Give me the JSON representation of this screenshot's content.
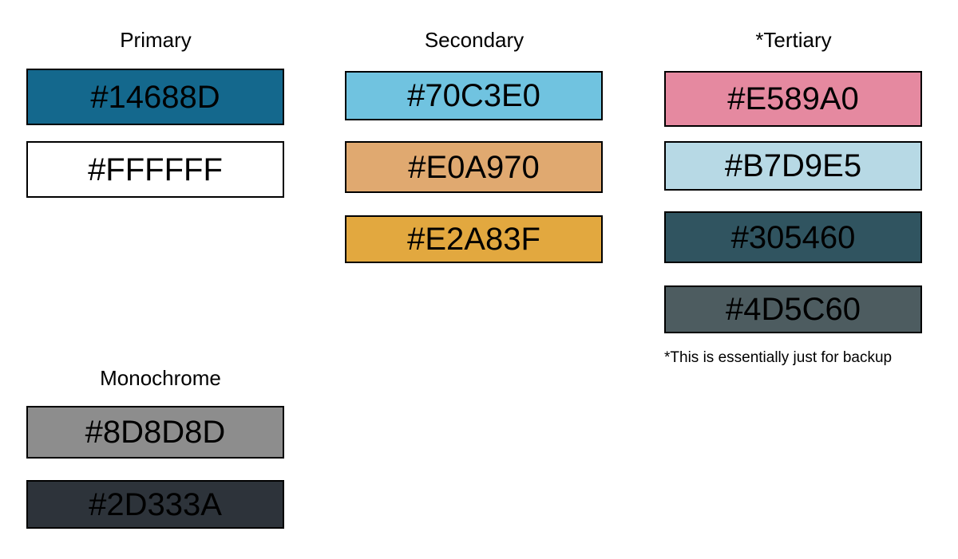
{
  "groups": {
    "primary": {
      "title": "Primary",
      "swatches": [
        {
          "label": "#14688D",
          "color": "#14688D"
        },
        {
          "label": "#FFFFFF",
          "color": "#FFFFFF"
        }
      ]
    },
    "secondary": {
      "title": "Secondary",
      "swatches": [
        {
          "label": "#70C3E0",
          "color": "#70C3E0"
        },
        {
          "label": "#E0A970",
          "color": "#E0A970"
        },
        {
          "label": "#E2A83F",
          "color": "#E2A83F"
        }
      ]
    },
    "tertiary": {
      "title": "*Tertiary",
      "swatches": [
        {
          "label": "#E589A0",
          "color": "#E589A0"
        },
        {
          "label": "#B7D9E5",
          "color": "#B7D9E5"
        },
        {
          "label": "#305460",
          "color": "#305460"
        },
        {
          "label": "#4D5C60",
          "color": "#4D5C60"
        }
      ],
      "footnote": "*This is essentially just for backup"
    },
    "monochrome": {
      "title": "Monochrome",
      "swatches": [
        {
          "label": "#8D8D8D",
          "color": "#8D8D8D"
        },
        {
          "label": "#2D333A",
          "color": "#2D333A"
        }
      ]
    }
  }
}
